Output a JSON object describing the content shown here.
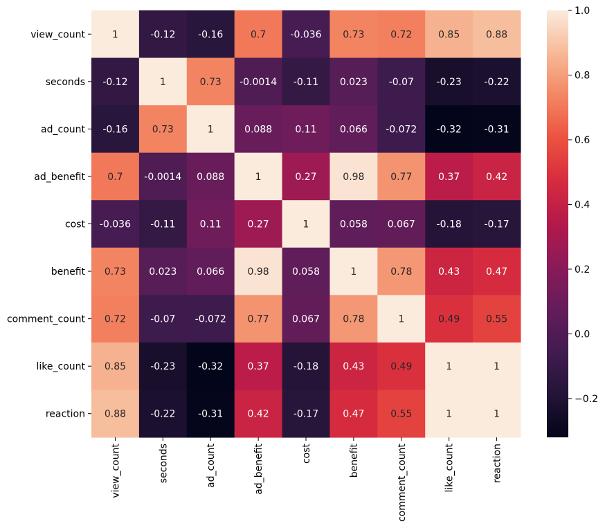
{
  "chart_data": {
    "type": "heatmap",
    "labels": [
      "view_count",
      "seconds",
      "ad_count",
      "ad_benefit",
      "cost",
      "benefit",
      "comment_count",
      "like_count",
      "reaction"
    ],
    "values": [
      [
        1,
        -0.12,
        -0.16,
        0.7,
        -0.036,
        0.73,
        0.72,
        0.85,
        0.88
      ],
      [
        -0.12,
        1,
        0.73,
        -0.0014,
        -0.11,
        0.023,
        -0.07,
        -0.23,
        -0.22
      ],
      [
        -0.16,
        0.73,
        1,
        0.088,
        0.11,
        0.066,
        -0.072,
        -0.32,
        -0.31
      ],
      [
        0.7,
        -0.0014,
        0.088,
        1,
        0.27,
        0.98,
        0.77,
        0.37,
        0.42
      ],
      [
        -0.036,
        -0.11,
        0.11,
        0.27,
        1,
        0.058,
        0.067,
        -0.18,
        -0.17
      ],
      [
        0.73,
        0.023,
        0.066,
        0.98,
        0.058,
        1,
        0.78,
        0.43,
        0.47
      ],
      [
        0.72,
        -0.07,
        -0.072,
        0.77,
        0.067,
        0.78,
        1,
        0.49,
        0.55
      ],
      [
        0.85,
        -0.23,
        -0.32,
        0.37,
        -0.18,
        0.43,
        0.49,
        1,
        1
      ],
      [
        0.88,
        -0.22,
        -0.31,
        0.42,
        -0.17,
        0.47,
        0.55,
        1,
        1
      ]
    ],
    "annotations": [
      [
        "1",
        "-0.12",
        "-0.16",
        "0.7",
        "-0.036",
        "0.73",
        "0.72",
        "0.85",
        "0.88"
      ],
      [
        "-0.12",
        "1",
        "0.73",
        "-0.0014",
        "-0.11",
        "0.023",
        "-0.07",
        "-0.23",
        "-0.22"
      ],
      [
        "-0.16",
        "0.73",
        "1",
        "0.088",
        "0.11",
        "0.066",
        "-0.072",
        "-0.32",
        "-0.31"
      ],
      [
        "0.7",
        "-0.0014",
        "0.088",
        "1",
        "0.27",
        "0.98",
        "0.77",
        "0.37",
        "0.42"
      ],
      [
        "-0.036",
        "-0.11",
        "0.11",
        "0.27",
        "1",
        "0.058",
        "0.067",
        "-0.18",
        "-0.17"
      ],
      [
        "0.73",
        "0.023",
        "0.066",
        "0.98",
        "0.058",
        "1",
        "0.78",
        "0.43",
        "0.47"
      ],
      [
        "0.72",
        "-0.07",
        "-0.072",
        "0.77",
        "0.067",
        "0.78",
        "1",
        "0.49",
        "0.55"
      ],
      [
        "0.85",
        "-0.23",
        "-0.32",
        "0.37",
        "-0.18",
        "0.43",
        "0.49",
        "1",
        "1"
      ],
      [
        "0.88",
        "-0.22",
        "-0.31",
        "0.42",
        "-0.17",
        "0.47",
        "0.55",
        "1",
        "1"
      ]
    ],
    "colorbar": {
      "range": [
        -0.32,
        1.0
      ],
      "ticks": [
        -0.2,
        0.0,
        0.2,
        0.4,
        0.6,
        0.8,
        1.0
      ],
      "tick_labels": [
        "−0.2",
        "0.0",
        "0.2",
        "0.4",
        "0.6",
        "0.8",
        "1.0"
      ],
      "colormap": "rocket"
    },
    "title": "",
    "xlabel": "",
    "ylabel": ""
  }
}
